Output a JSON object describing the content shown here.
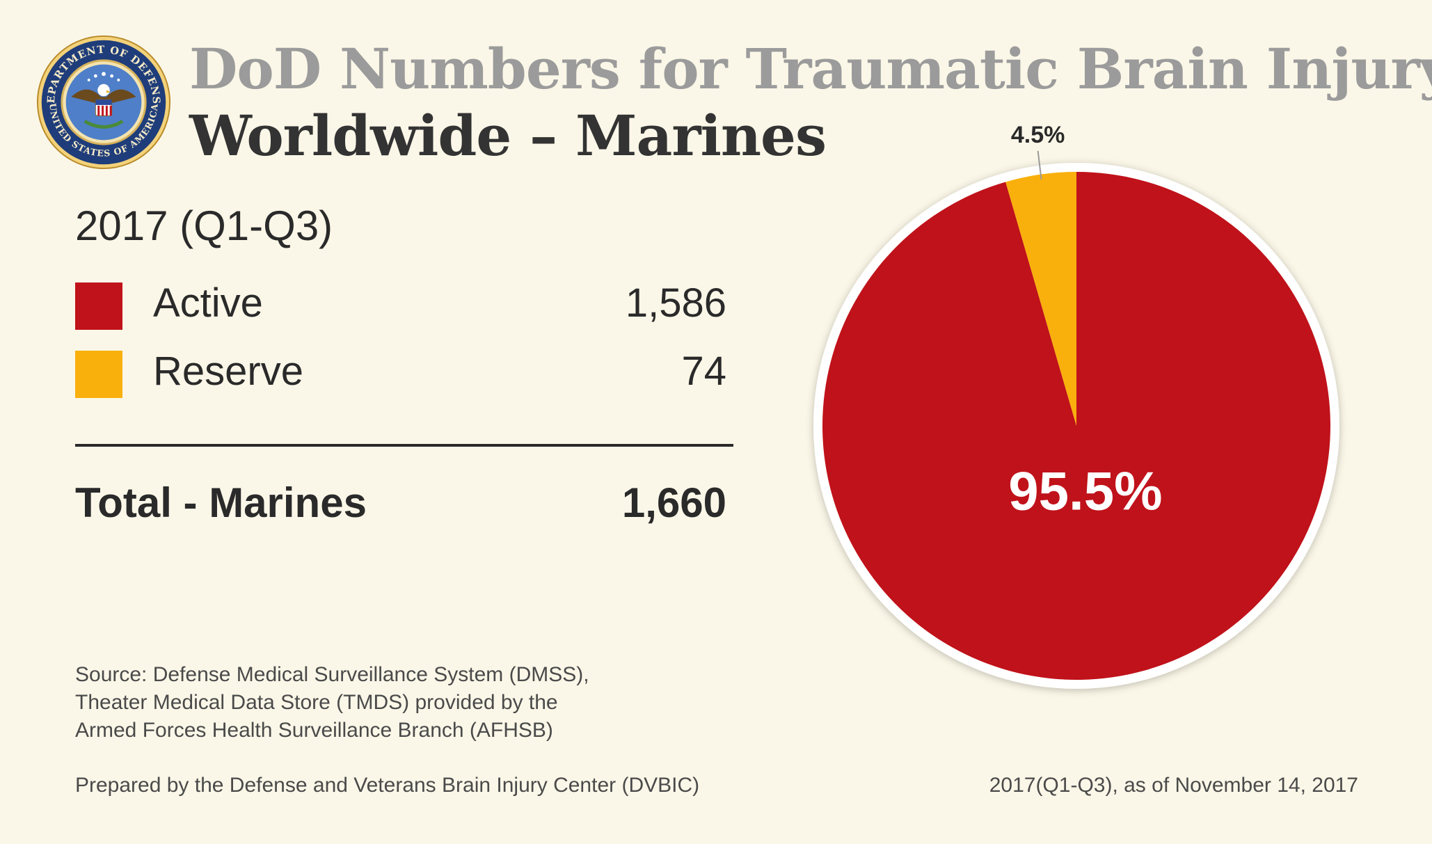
{
  "header": {
    "title_line1": "DoD Numbers for Traumatic Brain Injury",
    "title_line2": "Worldwide – Marines",
    "seal": {
      "top_text": "DEPARTMENT OF DEFENSE",
      "bottom_text": "UNITED STATES OF AMERICA"
    }
  },
  "summary": {
    "period": "2017 (Q1-Q3)",
    "rows": [
      {
        "label": "Active",
        "value": "1,586",
        "color": "#c0121a"
      },
      {
        "label": "Reserve",
        "value": "74",
        "color": "#f9b00c"
      }
    ],
    "total_label": "Total - Marines",
    "total_value": "1,660"
  },
  "footer": {
    "source_lines": [
      "Source: Defense Medical Surveillance System (DMSS),",
      "Theater Medical Data Store (TMDS) provided by the",
      "Armed Forces Health Surveillance Branch (AFHSB)"
    ],
    "prepared_by": "Prepared by the Defense and Veterans Brain Injury Center (DVBIC)",
    "dateline": "2017(Q1-Q3), as of November 14, 2017"
  },
  "chart_data": {
    "type": "pie",
    "categories": [
      "Active",
      "Reserve"
    ],
    "values": [
      95.5,
      4.5
    ],
    "labels": [
      "95.5%",
      "4.5%"
    ],
    "colors": [
      "#c0121a",
      "#f9b00c"
    ],
    "legend_placement": "left"
  }
}
